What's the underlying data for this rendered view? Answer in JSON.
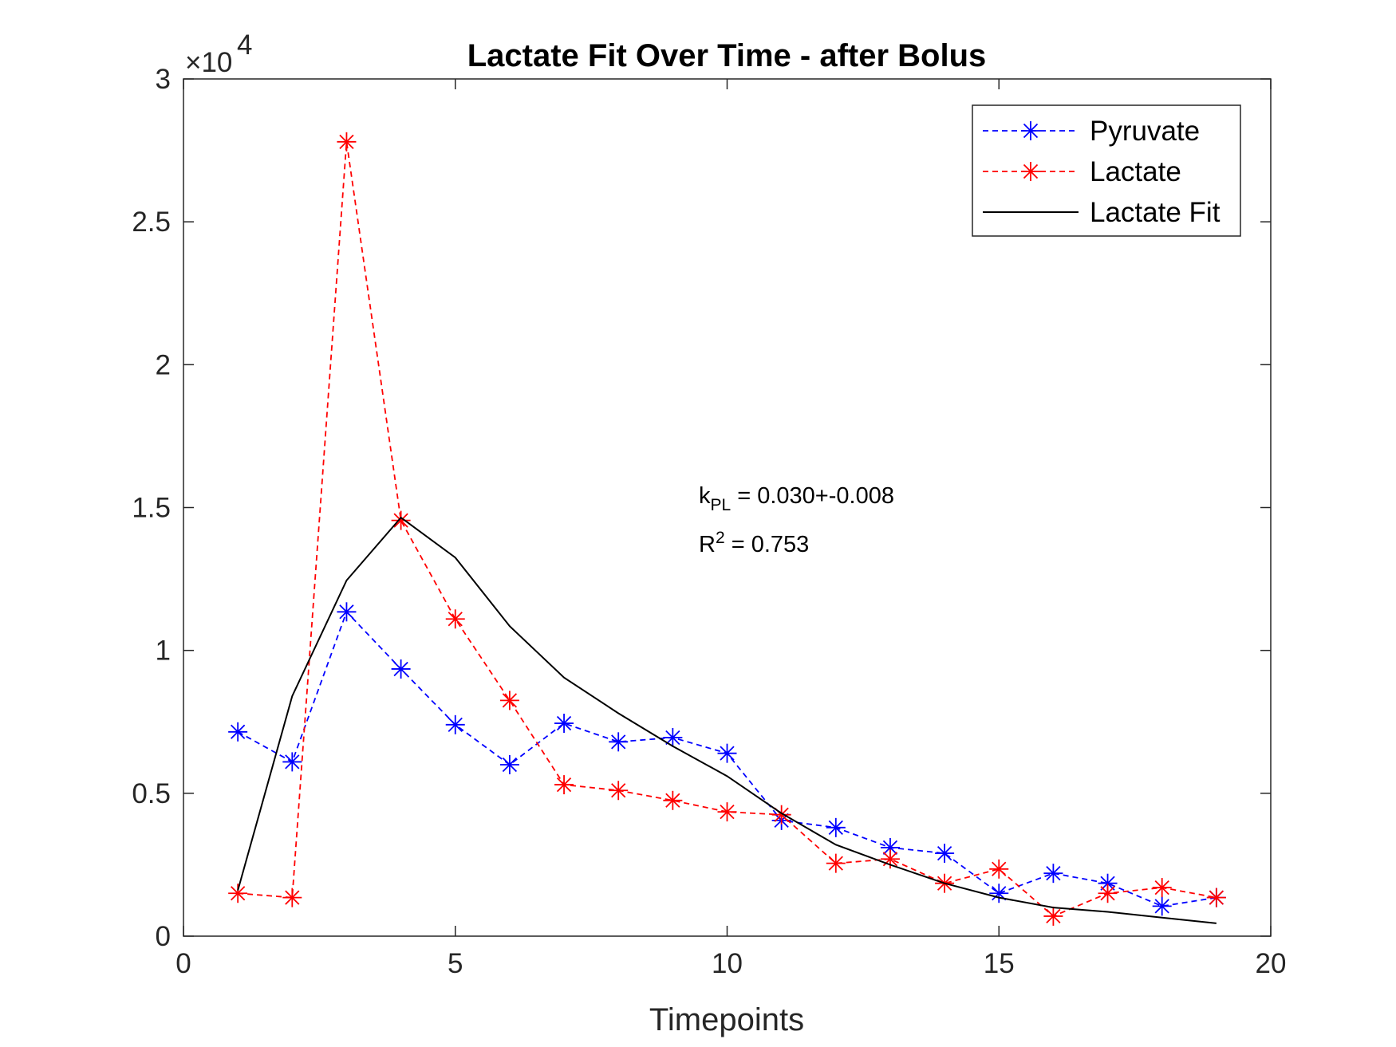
{
  "chart_data": {
    "type": "line",
    "title": "Lactate Fit Over Time - after Bolus",
    "xlabel": "Timepoints",
    "ylabel": "",
    "xlim": [
      0,
      20
    ],
    "ylim": [
      0,
      30000
    ],
    "y_exponent_label": {
      "base": "×10",
      "power": "4"
    },
    "x_ticks": [
      0,
      5,
      10,
      15,
      20
    ],
    "x_tick_labels": [
      "0",
      "5",
      "10",
      "15",
      "20"
    ],
    "y_ticks": [
      0,
      5000,
      10000,
      15000,
      20000,
      25000,
      30000
    ],
    "y_tick_labels": [
      "0",
      "0.5",
      "1",
      "1.5",
      "2",
      "2.5",
      "3"
    ],
    "grid": false,
    "legend_position": "top-right",
    "series": [
      {
        "name": "Pyruvate",
        "color": "#0000ff",
        "style": "dashed-star",
        "x": [
          1,
          2,
          3,
          4,
          5,
          6,
          7,
          8,
          9,
          10,
          11,
          12,
          13,
          14,
          15,
          16,
          17,
          18,
          19
        ],
        "values": [
          7150,
          6100,
          11350,
          9350,
          7400,
          6000,
          7450,
          6800,
          6950,
          6400,
          4050,
          3800,
          3100,
          2900,
          1500,
          2200,
          1850,
          1050,
          1350
        ]
      },
      {
        "name": "Lactate",
        "color": "#ff0000",
        "style": "dashed-star",
        "x": [
          1,
          2,
          3,
          4,
          5,
          6,
          7,
          8,
          9,
          10,
          11,
          12,
          13,
          14,
          15,
          16,
          17,
          18,
          19
        ],
        "values": [
          1500,
          1350,
          27800,
          14550,
          11100,
          8250,
          5300,
          5100,
          4750,
          4350,
          4250,
          2550,
          2700,
          1850,
          2350,
          700,
          1500,
          1700,
          1350
        ]
      },
      {
        "name": "Lactate Fit",
        "color": "#000000",
        "style": "solid",
        "x": [
          1,
          2,
          3,
          4,
          5,
          6,
          7,
          8,
          9,
          10,
          11,
          12,
          13,
          14,
          15,
          16,
          17,
          18,
          19
        ],
        "values": [
          1600,
          8400,
          12450,
          14650,
          13250,
          10850,
          9050,
          7800,
          6650,
          5600,
          4300,
          3200,
          2500,
          1850,
          1350,
          1000,
          850,
          650,
          450
        ]
      }
    ],
    "annotations": {
      "kpl_prefix": "k",
      "kpl_subscript": "PL",
      "kpl_value": " = 0.030+-0.008",
      "r2_prefix": "R",
      "r2_superscript": "2",
      "r2_value": " = 0.753"
    }
  }
}
